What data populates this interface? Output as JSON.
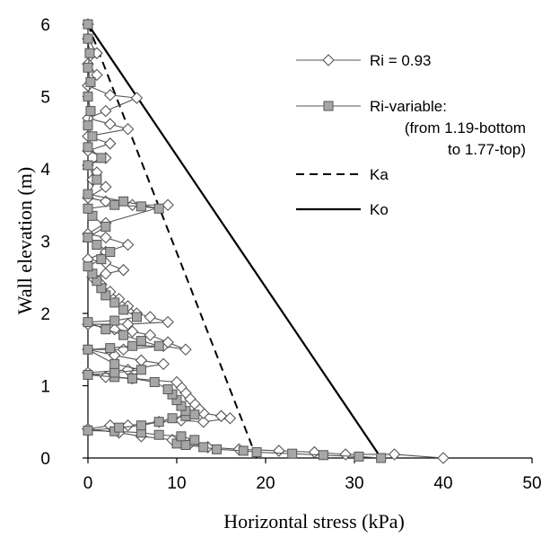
{
  "chart_data": {
    "type": "line",
    "title": "",
    "xlabel": "Horizontal stress (kPa)",
    "ylabel": "Wall elevation (m)",
    "xlim": [
      0,
      50
    ],
    "ylim": [
      0,
      6
    ],
    "xticks": [
      "0",
      "10",
      "20",
      "30",
      "40",
      "50"
    ],
    "yticks": [
      "0",
      "1",
      "2",
      "3",
      "4",
      "5",
      "6"
    ],
    "grid": false,
    "legend_position": "top-right",
    "series": [
      {
        "name": "Ri = 0.93",
        "legend_lines": [
          "Ri = 0.93"
        ],
        "style": "diamond-open",
        "points": [
          [
            40,
            0
          ],
          [
            34.5,
            0.05
          ],
          [
            29,
            0.05
          ],
          [
            25.5,
            0.08
          ],
          [
            21.5,
            0.1
          ],
          [
            17,
            0.12
          ],
          [
            13.5,
            0.15
          ],
          [
            11.5,
            0.2
          ],
          [
            9.5,
            0.25
          ],
          [
            6,
            0.3
          ],
          [
            3.5,
            0.35
          ],
          [
            0,
            0.4
          ],
          [
            2.5,
            0.45
          ],
          [
            4.5,
            0.45
          ],
          [
            8,
            0.5
          ],
          [
            10.5,
            0.52
          ],
          [
            13,
            0.5
          ],
          [
            16,
            0.55
          ],
          [
            15,
            0.58
          ],
          [
            13,
            0.62
          ],
          [
            12.5,
            0.68
          ],
          [
            12,
            0.75
          ],
          [
            11.5,
            0.82
          ],
          [
            11,
            0.9
          ],
          [
            10.5,
            0.98
          ],
          [
            10,
            1.05
          ],
          [
            5,
            1.1
          ],
          [
            2,
            1.12
          ],
          [
            0,
            1.18
          ],
          [
            4.5,
            1.22
          ],
          [
            8.5,
            1.3
          ],
          [
            6,
            1.35
          ],
          [
            3,
            1.42
          ],
          [
            0,
            1.5
          ],
          [
            4,
            1.5
          ],
          [
            8.5,
            1.55
          ],
          [
            11,
            1.5
          ],
          [
            9,
            1.6
          ],
          [
            7,
            1.7
          ],
          [
            5,
            1.75
          ],
          [
            3,
            1.78
          ],
          [
            0,
            1.85
          ],
          [
            4.5,
            1.85
          ],
          [
            9,
            1.88
          ],
          [
            7,
            1.95
          ],
          [
            5.5,
            2.0
          ],
          [
            4.5,
            2.1
          ],
          [
            3.5,
            2.2
          ],
          [
            2.5,
            2.3
          ],
          [
            1.5,
            2.4
          ],
          [
            0.5,
            2.5
          ],
          [
            2,
            2.55
          ],
          [
            4,
            2.6
          ],
          [
            2,
            2.7
          ],
          [
            0,
            2.75
          ],
          [
            2,
            2.85
          ],
          [
            4.5,
            2.95
          ],
          [
            2,
            3.05
          ],
          [
            0,
            3.1
          ],
          [
            2,
            3.25
          ],
          [
            9,
            3.5
          ],
          [
            5,
            3.5
          ],
          [
            2,
            3.55
          ],
          [
            0,
            3.6
          ],
          [
            2,
            3.75
          ],
          [
            0.5,
            3.85
          ],
          [
            1,
            3.95
          ],
          [
            0,
            4.05
          ],
          [
            2,
            4.15
          ],
          [
            0,
            4.25
          ],
          [
            2.5,
            4.35
          ],
          [
            0,
            4.45
          ],
          [
            4.5,
            4.55
          ],
          [
            2.5,
            4.62
          ],
          [
            0,
            4.7
          ],
          [
            2,
            4.8
          ],
          [
            5.5,
            4.98
          ],
          [
            2.5,
            5.02
          ],
          [
            0,
            5.15
          ],
          [
            1,
            5.3
          ],
          [
            0,
            5.45
          ],
          [
            1,
            5.6
          ],
          [
            0,
            5.8
          ],
          [
            0,
            6.0
          ]
        ]
      },
      {
        "name": "Ri-variable: (from 1.19-bottom to 1.77-top)",
        "legend_lines": [
          "Ri-variable:",
          "(from 1.19-bottom",
          "to 1.77-top)"
        ],
        "style": "square-gray",
        "points": [
          [
            33,
            0
          ],
          [
            30.5,
            0.02
          ],
          [
            26.5,
            0.04
          ],
          [
            23,
            0.06
          ],
          [
            19,
            0.08
          ],
          [
            17.5,
            0.1
          ],
          [
            14.5,
            0.12
          ],
          [
            13,
            0.15
          ],
          [
            11,
            0.18
          ],
          [
            10,
            0.2
          ],
          [
            12,
            0.25
          ],
          [
            10.5,
            0.3
          ],
          [
            8,
            0.32
          ],
          [
            6,
            0.35
          ],
          [
            3,
            0.37
          ],
          [
            0,
            0.38
          ],
          [
            3.5,
            0.42
          ],
          [
            6,
            0.45
          ],
          [
            8,
            0.5
          ],
          [
            9.5,
            0.55
          ],
          [
            11,
            0.58
          ],
          [
            12,
            0.6
          ],
          [
            11,
            0.65
          ],
          [
            10.5,
            0.72
          ],
          [
            10,
            0.8
          ],
          [
            9.5,
            0.88
          ],
          [
            9,
            0.95
          ],
          [
            7.5,
            1.05
          ],
          [
            5,
            1.1
          ],
          [
            3,
            1.12
          ],
          [
            0,
            1.15
          ],
          [
            3,
            1.18
          ],
          [
            6,
            1.22
          ],
          [
            3,
            1.3
          ],
          [
            0,
            1.5
          ],
          [
            2.5,
            1.52
          ],
          [
            5,
            1.55
          ],
          [
            8,
            1.55
          ],
          [
            6,
            1.62
          ],
          [
            4,
            1.7
          ],
          [
            2,
            1.78
          ],
          [
            0,
            1.88
          ],
          [
            3,
            1.9
          ],
          [
            5.5,
            1.95
          ],
          [
            4,
            2.05
          ],
          [
            3,
            2.15
          ],
          [
            2,
            2.25
          ],
          [
            1.5,
            2.35
          ],
          [
            1,
            2.45
          ],
          [
            0.5,
            2.55
          ],
          [
            0,
            2.65
          ],
          [
            1.5,
            2.75
          ],
          [
            2.5,
            2.85
          ],
          [
            1,
            2.95
          ],
          [
            0,
            3.05
          ],
          [
            2,
            3.2
          ],
          [
            0.5,
            3.35
          ],
          [
            0,
            3.45
          ],
          [
            3,
            3.5
          ],
          [
            6,
            3.48
          ],
          [
            8,
            3.45
          ],
          [
            4,
            3.55
          ],
          [
            0,
            3.65
          ],
          [
            1,
            3.85
          ],
          [
            0,
            4.05
          ],
          [
            1.5,
            4.15
          ],
          [
            0,
            4.3
          ],
          [
            0.5,
            4.45
          ],
          [
            0,
            4.6
          ],
          [
            0.3,
            4.8
          ],
          [
            0,
            5.0
          ],
          [
            0.3,
            5.2
          ],
          [
            0,
            5.4
          ],
          [
            0.2,
            5.6
          ],
          [
            0,
            5.8
          ],
          [
            0,
            6.0
          ]
        ]
      },
      {
        "name": "Ka",
        "legend_lines": [
          "Ka"
        ],
        "style": "dashed",
        "points": [
          [
            0,
            6
          ],
          [
            19,
            0
          ]
        ]
      },
      {
        "name": "Ko",
        "legend_lines": [
          "Ko"
        ],
        "style": "solid",
        "points": [
          [
            0,
            6
          ],
          [
            33,
            0
          ]
        ]
      }
    ]
  }
}
